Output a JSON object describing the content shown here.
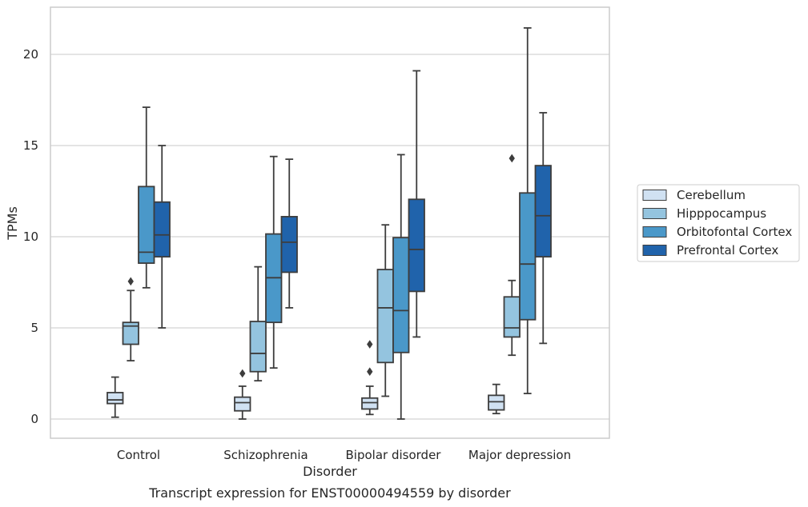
{
  "chart_data": {
    "type": "box",
    "title": "",
    "caption": "Transcript expression for ENST00000494559 by disorder",
    "xlabel": "Disorder",
    "ylabel": "TPMs",
    "ylim": [
      -1,
      22.6
    ],
    "yticks": [
      0,
      5,
      10,
      15,
      20
    ],
    "grid": "horizontal",
    "legend_position": "right",
    "categories": [
      "Control",
      "Schizophrenia",
      "Bipolar disorder",
      "Major depression"
    ],
    "series": [
      {
        "name": "Cerebellum",
        "color": "#d0e1f2",
        "boxes": [
          {
            "whislo": 0.1,
            "q1": 0.85,
            "med": 1.05,
            "q3": 1.45,
            "whishi": 2.3,
            "fliers": []
          },
          {
            "whislo": 0.0,
            "q1": 0.45,
            "med": 0.9,
            "q3": 1.2,
            "whishi": 1.8,
            "fliers": [
              2.5
            ]
          },
          {
            "whislo": 0.25,
            "q1": 0.55,
            "med": 0.9,
            "q3": 1.15,
            "whishi": 1.8,
            "fliers": [
              2.6,
              4.1
            ]
          },
          {
            "whislo": 0.3,
            "q1": 0.5,
            "med": 0.95,
            "q3": 1.3,
            "whishi": 1.9,
            "fliers": []
          }
        ]
      },
      {
        "name": "Hipppocampus",
        "color": "#94c4df",
        "boxes": [
          {
            "whislo": 3.2,
            "q1": 4.1,
            "med": 5.1,
            "q3": 5.3,
            "whishi": 7.05,
            "fliers": [
              7.55
            ]
          },
          {
            "whislo": 2.1,
            "q1": 2.6,
            "med": 3.6,
            "q3": 5.35,
            "whishi": 8.35,
            "fliers": []
          },
          {
            "whislo": 1.25,
            "q1": 3.1,
            "med": 6.1,
            "q3": 8.2,
            "whishi": 10.65,
            "fliers": []
          },
          {
            "whislo": 3.5,
            "q1": 4.5,
            "med": 5.0,
            "q3": 6.7,
            "whishi": 7.6,
            "fliers": [
              14.3
            ]
          }
        ]
      },
      {
        "name": "Orbitofontal Cortex",
        "color": "#4a98c9",
        "boxes": [
          {
            "whislo": 7.2,
            "q1": 8.55,
            "med": 9.15,
            "q3": 12.75,
            "whishi": 17.1,
            "fliers": []
          },
          {
            "whislo": 2.8,
            "q1": 5.3,
            "med": 7.75,
            "q3": 10.15,
            "whishi": 14.4,
            "fliers": []
          },
          {
            "whislo": 0.0,
            "q1": 3.65,
            "med": 5.95,
            "q3": 9.95,
            "whishi": 14.5,
            "fliers": []
          },
          {
            "whislo": 1.4,
            "q1": 5.45,
            "med": 8.5,
            "q3": 12.4,
            "whishi": 21.45,
            "fliers": []
          }
        ]
      },
      {
        "name": "Prefrontal Cortex",
        "color": "#2063ab",
        "boxes": [
          {
            "whislo": 5.0,
            "q1": 8.9,
            "med": 10.1,
            "q3": 11.9,
            "whishi": 15.0,
            "fliers": []
          },
          {
            "whislo": 6.1,
            "q1": 8.05,
            "med": 9.7,
            "q3": 11.1,
            "whishi": 14.25,
            "fliers": []
          },
          {
            "whislo": 4.5,
            "q1": 7.0,
            "med": 9.3,
            "q3": 12.05,
            "whishi": 19.1,
            "fliers": []
          },
          {
            "whislo": 4.15,
            "q1": 8.9,
            "med": 11.15,
            "q3": 13.9,
            "whishi": 16.8,
            "fliers": []
          }
        ]
      }
    ],
    "colors": {
      "edge": "#3d3d3d",
      "grid": "#d3d3d3",
      "frame": "#cccccc",
      "text": "#262626"
    }
  }
}
